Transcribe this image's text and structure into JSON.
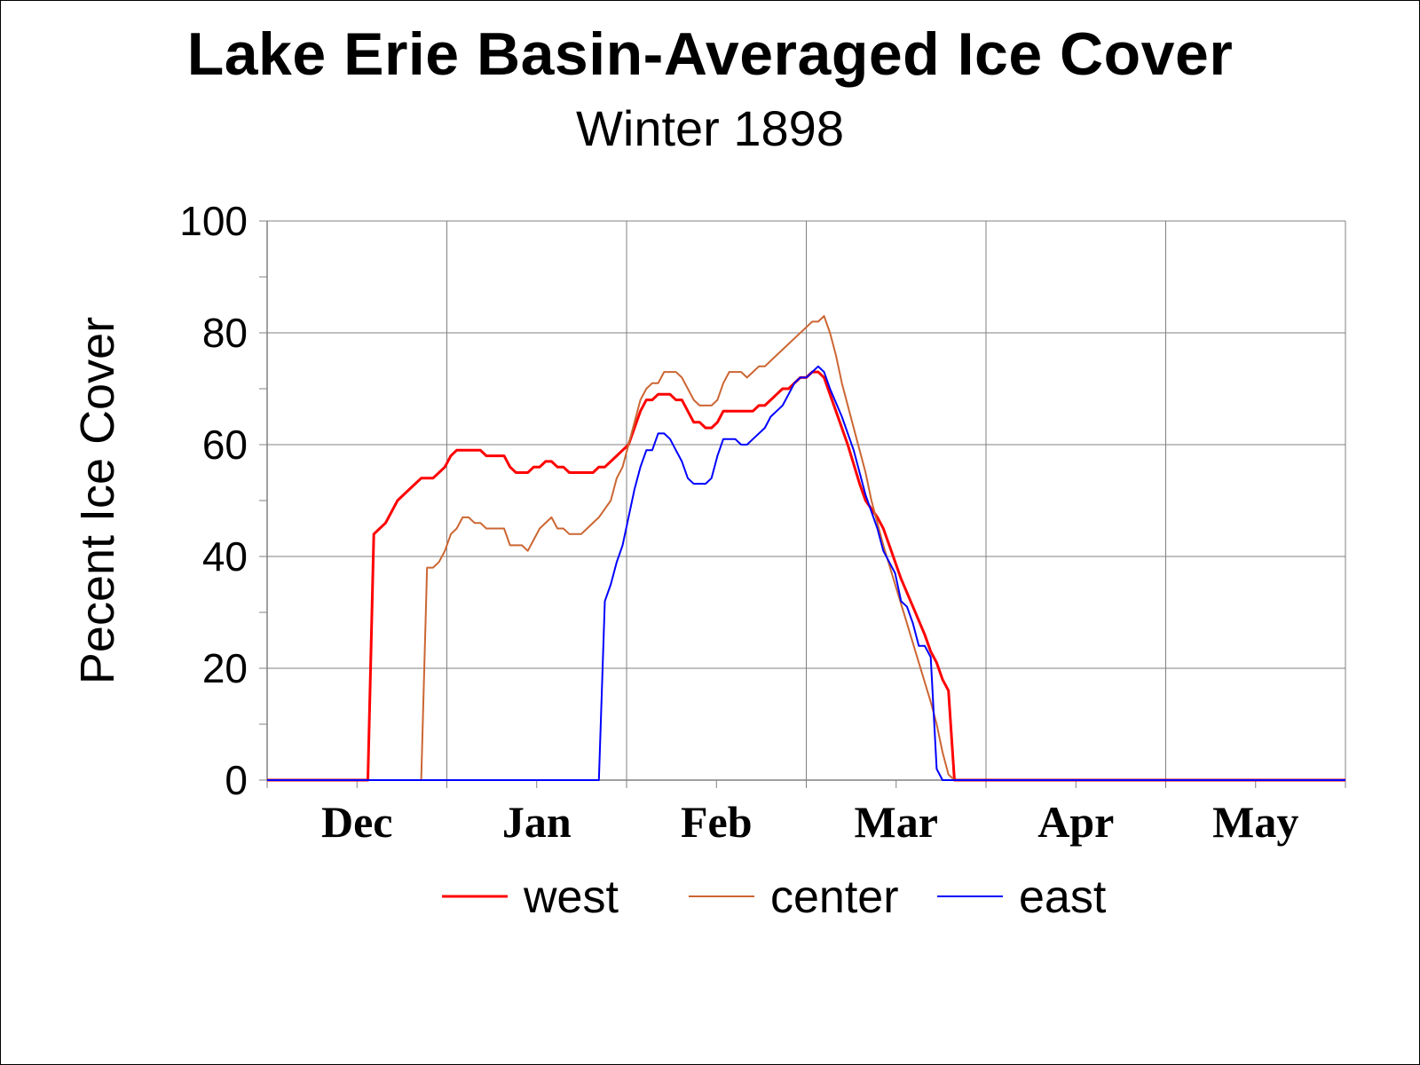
{
  "chart_data": {
    "type": "line",
    "title": "Lake Erie Basin-Averaged Ice Cover",
    "subtitle": "Winter 1898",
    "ylabel": "Pecent Ice Cover",
    "xlabel": "",
    "ylim": [
      0,
      100
    ],
    "yticks": [
      0,
      20,
      40,
      60,
      80,
      100
    ],
    "xlim_day": [
      0,
      182
    ],
    "x_unit": "days since Nov 16",
    "months": [
      "Dec",
      "Jan",
      "Feb",
      "Mar",
      "Apr",
      "May"
    ],
    "grid": true,
    "legend_position": "bottom",
    "series": [
      {
        "name": "west",
        "color": "#ff0000",
        "width": 3,
        "points": [
          [
            0,
            0
          ],
          [
            17,
            0
          ],
          [
            18,
            44
          ],
          [
            19,
            45
          ],
          [
            20,
            46
          ],
          [
            22,
            50
          ],
          [
            24,
            52
          ],
          [
            26,
            54
          ],
          [
            28,
            54
          ],
          [
            30,
            56
          ],
          [
            31,
            58
          ],
          [
            32,
            59
          ],
          [
            36,
            59
          ],
          [
            37,
            58
          ],
          [
            40,
            58
          ],
          [
            41,
            56
          ],
          [
            42,
            55
          ],
          [
            44,
            55
          ],
          [
            45,
            56
          ],
          [
            46,
            56
          ],
          [
            47,
            57
          ],
          [
            48,
            57
          ],
          [
            49,
            56
          ],
          [
            50,
            56
          ],
          [
            51,
            55
          ],
          [
            55,
            55
          ],
          [
            56,
            56
          ],
          [
            57,
            56
          ],
          [
            59,
            58
          ],
          [
            60,
            59
          ],
          [
            61,
            60
          ],
          [
            62,
            63
          ],
          [
            63,
            66
          ],
          [
            64,
            68
          ],
          [
            65,
            68
          ],
          [
            66,
            69
          ],
          [
            68,
            69
          ],
          [
            69,
            68
          ],
          [
            70,
            68
          ],
          [
            71,
            66
          ],
          [
            72,
            64
          ],
          [
            73,
            64
          ],
          [
            74,
            63
          ],
          [
            75,
            63
          ],
          [
            76,
            64
          ],
          [
            77,
            66
          ],
          [
            82,
            66
          ],
          [
            83,
            67
          ],
          [
            84,
            67
          ],
          [
            86,
            69
          ],
          [
            87,
            70
          ],
          [
            88,
            70
          ],
          [
            89,
            71
          ],
          [
            90,
            72
          ],
          [
            91,
            72
          ],
          [
            92,
            73
          ],
          [
            93,
            73
          ],
          [
            94,
            72
          ],
          [
            96,
            66
          ],
          [
            98,
            60
          ],
          [
            100,
            53
          ],
          [
            101,
            50
          ],
          [
            103,
            47
          ],
          [
            104,
            45
          ],
          [
            105,
            42
          ],
          [
            107,
            36
          ],
          [
            109,
            31
          ],
          [
            111,
            26
          ],
          [
            112,
            23
          ],
          [
            113,
            21
          ],
          [
            114,
            18
          ],
          [
            115,
            16
          ],
          [
            116,
            0
          ],
          [
            182,
            0
          ]
        ]
      },
      {
        "name": "center",
        "color": "#cc6633",
        "width": 2,
        "points": [
          [
            0,
            0
          ],
          [
            26,
            0
          ],
          [
            27,
            38
          ],
          [
            28,
            38
          ],
          [
            29,
            39
          ],
          [
            30,
            41
          ],
          [
            31,
            44
          ],
          [
            32,
            45
          ],
          [
            33,
            47
          ],
          [
            34,
            47
          ],
          [
            35,
            46
          ],
          [
            36,
            46
          ],
          [
            37,
            45
          ],
          [
            40,
            45
          ],
          [
            41,
            42
          ],
          [
            43,
            42
          ],
          [
            44,
            41
          ],
          [
            45,
            43
          ],
          [
            46,
            45
          ],
          [
            48,
            47
          ],
          [
            49,
            45
          ],
          [
            50,
            45
          ],
          [
            51,
            44
          ],
          [
            53,
            44
          ],
          [
            54,
            45
          ],
          [
            56,
            47
          ],
          [
            58,
            50
          ],
          [
            59,
            54
          ],
          [
            60,
            56
          ],
          [
            61,
            60
          ],
          [
            62,
            64
          ],
          [
            63,
            68
          ],
          [
            64,
            70
          ],
          [
            65,
            71
          ],
          [
            66,
            71
          ],
          [
            67,
            73
          ],
          [
            69,
            73
          ],
          [
            70,
            72
          ],
          [
            71,
            70
          ],
          [
            72,
            68
          ],
          [
            73,
            67
          ],
          [
            75,
            67
          ],
          [
            76,
            68
          ],
          [
            77,
            71
          ],
          [
            78,
            73
          ],
          [
            80,
            73
          ],
          [
            81,
            72
          ],
          [
            82,
            73
          ],
          [
            83,
            74
          ],
          [
            84,
            74
          ],
          [
            85,
            75
          ],
          [
            87,
            77
          ],
          [
            89,
            79
          ],
          [
            91,
            81
          ],
          [
            92,
            82
          ],
          [
            93,
            82
          ],
          [
            94,
            83
          ],
          [
            95,
            80
          ],
          [
            96,
            76
          ],
          [
            97,
            71
          ],
          [
            99,
            63
          ],
          [
            101,
            55
          ],
          [
            102,
            50
          ],
          [
            103,
            46
          ],
          [
            104,
            42
          ],
          [
            106,
            35
          ],
          [
            108,
            28
          ],
          [
            110,
            21
          ],
          [
            112,
            14
          ],
          [
            113,
            10
          ],
          [
            114,
            5
          ],
          [
            115,
            1
          ],
          [
            116,
            0
          ],
          [
            182,
            0
          ]
        ]
      },
      {
        "name": "east",
        "color": "#0000ff",
        "width": 2,
        "points": [
          [
            0,
            0
          ],
          [
            56,
            0
          ],
          [
            57,
            32
          ],
          [
            58,
            35
          ],
          [
            59,
            39
          ],
          [
            60,
            42
          ],
          [
            61,
            47
          ],
          [
            62,
            52
          ],
          [
            63,
            56
          ],
          [
            64,
            59
          ],
          [
            65,
            59
          ],
          [
            66,
            62
          ],
          [
            67,
            62
          ],
          [
            68,
            61
          ],
          [
            69,
            59
          ],
          [
            70,
            57
          ],
          [
            71,
            54
          ],
          [
            72,
            53
          ],
          [
            74,
            53
          ],
          [
            75,
            54
          ],
          [
            76,
            58
          ],
          [
            77,
            61
          ],
          [
            78,
            61
          ],
          [
            79,
            61
          ],
          [
            80,
            60
          ],
          [
            81,
            60
          ],
          [
            82,
            61
          ],
          [
            84,
            63
          ],
          [
            85,
            65
          ],
          [
            86,
            66
          ],
          [
            87,
            67
          ],
          [
            88,
            69
          ],
          [
            89,
            71
          ],
          [
            90,
            72
          ],
          [
            91,
            72
          ],
          [
            92,
            73
          ],
          [
            93,
            74
          ],
          [
            94,
            73
          ],
          [
            95,
            70
          ],
          [
            97,
            65
          ],
          [
            99,
            59
          ],
          [
            101,
            51
          ],
          [
            102,
            48
          ],
          [
            103,
            45
          ],
          [
            104,
            41
          ],
          [
            106,
            37
          ],
          [
            107,
            32
          ],
          [
            108,
            31
          ],
          [
            109,
            28
          ],
          [
            110,
            24
          ],
          [
            111,
            24
          ],
          [
            112,
            22
          ],
          [
            113,
            2
          ],
          [
            114,
            0
          ],
          [
            182,
            0
          ]
        ]
      }
    ]
  }
}
